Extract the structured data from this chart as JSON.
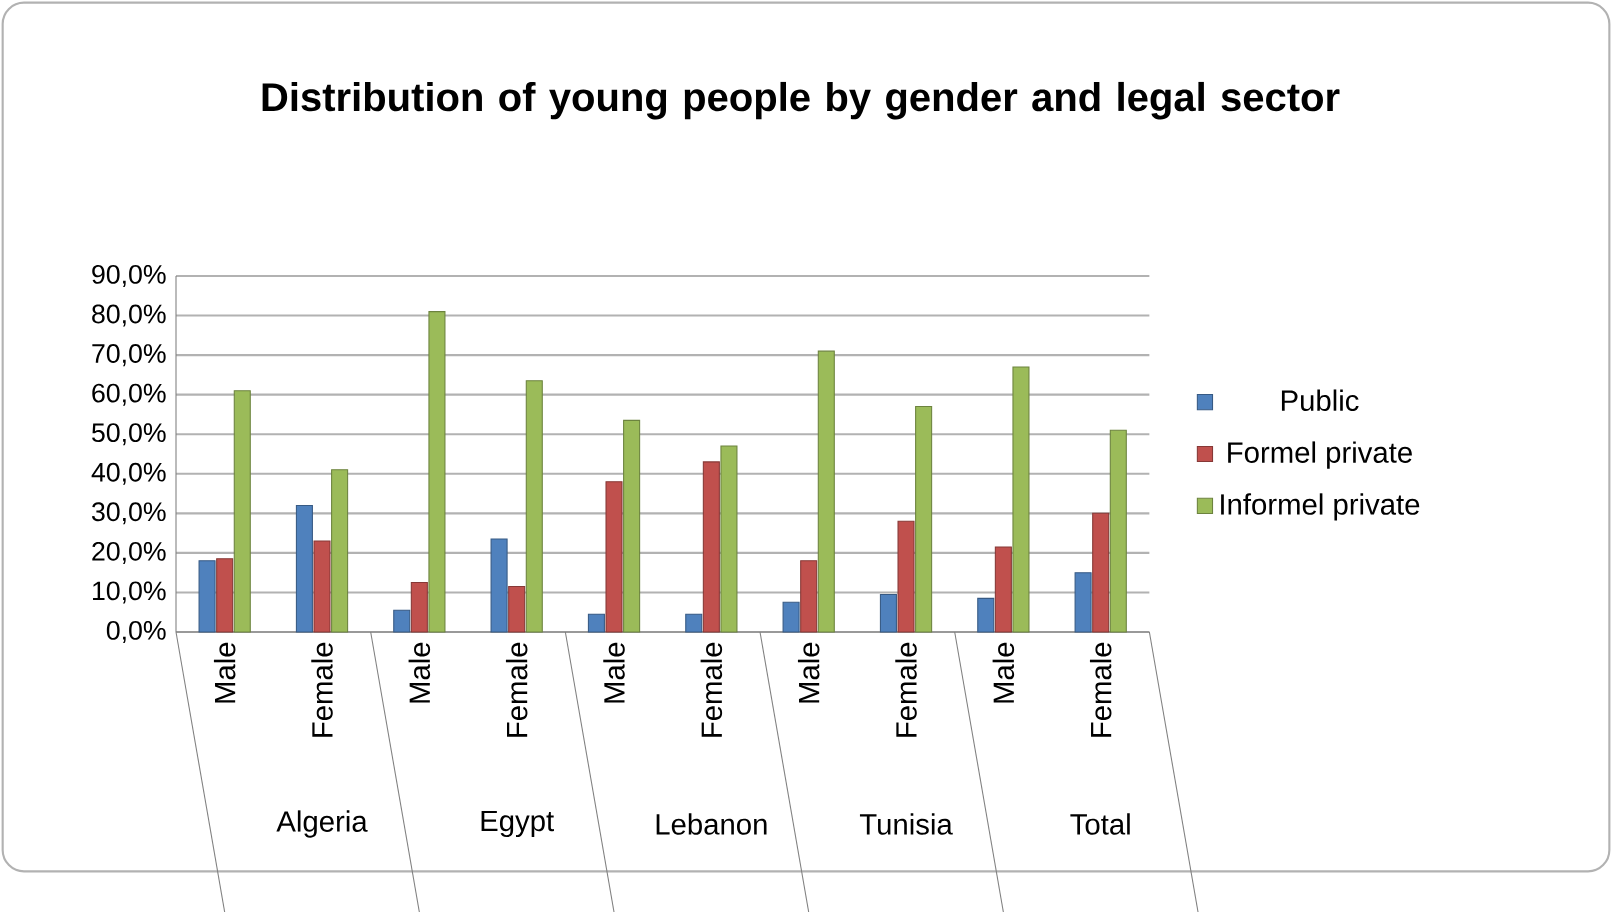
{
  "chart_data": {
    "type": "bar",
    "title": "Distribution of young people by gender and legal sector",
    "categories": [
      "Male",
      "Female",
      "Male",
      "Female",
      "Male",
      "Female",
      "Male",
      "Female",
      "Male",
      "Female"
    ],
    "series": [
      {
        "name": "Public",
        "color": "#4f81bd",
        "values": [
          18,
          32,
          5.5,
          23.5,
          4.5,
          4.5,
          7.5,
          9.5,
          8.5,
          15
        ]
      },
      {
        "name": "Formel private",
        "color": "#c0504d",
        "values": [
          18.5,
          23,
          12.5,
          11.5,
          38,
          43,
          18,
          28,
          21.5,
          30
        ]
      },
      {
        "name": "Informel private",
        "color": "#9bbb59",
        "values": [
          61,
          41,
          81,
          63.5,
          53.5,
          47,
          71,
          57,
          67,
          51
        ]
      }
    ],
    "annotations": [
      "Algeria",
      "Egypt",
      "Lebanon",
      "Tunisia",
      "Total"
    ],
    "ylim": [
      0,
      90
    ],
    "yticks": [
      {
        "value": 0,
        "label": "0,0%"
      },
      {
        "value": 10,
        "label": "10,0%"
      },
      {
        "value": 20,
        "label": "20,0%"
      },
      {
        "value": 30,
        "label": "30,0%"
      },
      {
        "value": 40,
        "label": "40,0%"
      },
      {
        "value": 50,
        "label": "50,0%"
      },
      {
        "value": 60,
        "label": "60,0%"
      },
      {
        "value": 70,
        "label": "70,0%"
      },
      {
        "value": 80,
        "label": "80,0%"
      },
      {
        "value": 90,
        "label": "90,0%"
      }
    ],
    "grid": "y",
    "legend": "right"
  }
}
